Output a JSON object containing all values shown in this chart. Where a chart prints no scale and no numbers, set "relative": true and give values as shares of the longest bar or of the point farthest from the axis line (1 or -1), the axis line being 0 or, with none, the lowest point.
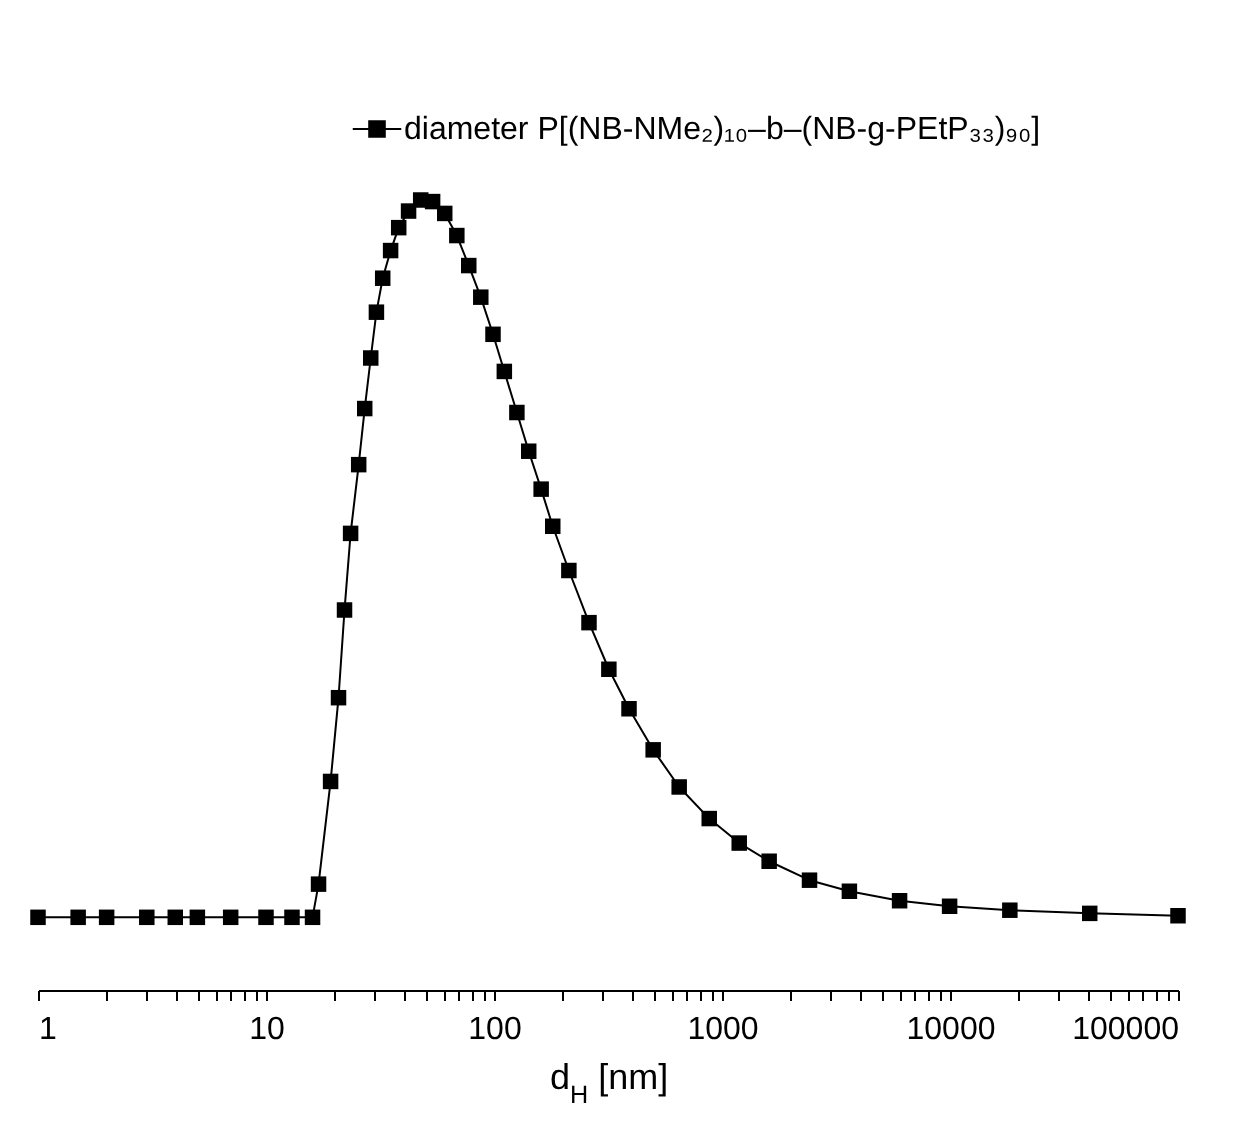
{
  "chart_data": {
    "type": "line",
    "relative": true,
    "xlabel": "d$_{H}$ [nm]",
    "log": "x",
    "marker": "square",
    "legend": "top right",
    "grid": false,
    "xlim": [
      1,
      100000
    ],
    "xticks": [
      1,
      {
        "value": 2,
        "label": null
      },
      {
        "value": 3,
        "label": null
      },
      {
        "value": 4,
        "label": null
      },
      {
        "value": 5,
        "label": null
      },
      {
        "value": 6,
        "label": null
      },
      {
        "value": 7,
        "label": null
      },
      {
        "value": 8,
        "label": null
      },
      {
        "value": 9,
        "label": null
      },
      10,
      {
        "value": 20,
        "label": null
      },
      {
        "value": 30,
        "label": null
      },
      {
        "value": 40,
        "label": null
      },
      {
        "value": 50,
        "label": null
      },
      {
        "value": 60,
        "label": null
      },
      {
        "value": 70,
        "label": null
      },
      {
        "value": 80,
        "label": null
      },
      {
        "value": 90,
        "label": null
      },
      100,
      {
        "value": 200,
        "label": null
      },
      {
        "value": 300,
        "label": null
      },
      {
        "value": 400,
        "label": null
      },
      {
        "value": 500,
        "label": null
      },
      {
        "value": 600,
        "label": null
      },
      {
        "value": 700,
        "label": null
      },
      {
        "value": 800,
        "label": null
      },
      {
        "value": 900,
        "label": null
      },
      1000,
      {
        "value": 2000,
        "label": null
      },
      {
        "value": 3000,
        "label": null
      },
      {
        "value": 4000,
        "label": null
      },
      {
        "value": 5000,
        "label": null
      },
      {
        "value": 6000,
        "label": null
      },
      {
        "value": 7000,
        "label": null
      },
      {
        "value": 8000,
        "label": null
      },
      {
        "value": 9000,
        "label": null
      },
      10000,
      {
        "value": 20000,
        "label": null
      },
      {
        "value": 30000,
        "label": null
      },
      {
        "value": 40000,
        "label": null
      },
      {
        "value": 50000,
        "label": null
      },
      {
        "value": 60000,
        "label": null
      },
      {
        "value": 70000,
        "label": null
      },
      {
        "value": 80000,
        "label": null
      },
      {
        "value": 90000,
        "label": null
      },
      100000
    ],
    "series": [
      {
        "name": "diameter P[(NB-NMe₂)₁₀–b–(NB-g-PEtP₃₃)₉₀]",
        "color": "#000000",
        "x": [
          1,
          1.5,
          2,
          3,
          4,
          5,
          7,
          10,
          13,
          16,
          17,
          19.2,
          20.8,
          22.1,
          23.5,
          25.5,
          27.1,
          28.8,
          30.5,
          32.5,
          35.2,
          38.2,
          42.2,
          47.7,
          53.8,
          60.8,
          68.7,
          77.5,
          87.5,
          99,
          111,
          126,
          142,
          161,
          181,
          213,
          261,
          319,
          391,
          499,
          649,
          879,
          1190,
          1610,
          2420,
          3620,
          6010,
          9960,
          18300,
          41000,
          100000
        ],
        "values": [
          0.092,
          0.092,
          0.092,
          0.092,
          0.092,
          0.092,
          0.092,
          0.092,
          0.092,
          0.092,
          0.134,
          0.264,
          0.37,
          0.481,
          0.578,
          0.665,
          0.736,
          0.8,
          0.858,
          0.901,
          0.936,
          0.965,
          0.986,
          1,
          0.998,
          0.983,
          0.955,
          0.917,
          0.877,
          0.83,
          0.783,
          0.731,
          0.682,
          0.634,
          0.587,
          0.531,
          0.465,
          0.406,
          0.356,
          0.304,
          0.257,
          0.217,
          0.186,
          0.163,
          0.139,
          0.125,
          0.113,
          0.106,
          0.101,
          0.097,
          0.094
        ]
      }
    ]
  }
}
